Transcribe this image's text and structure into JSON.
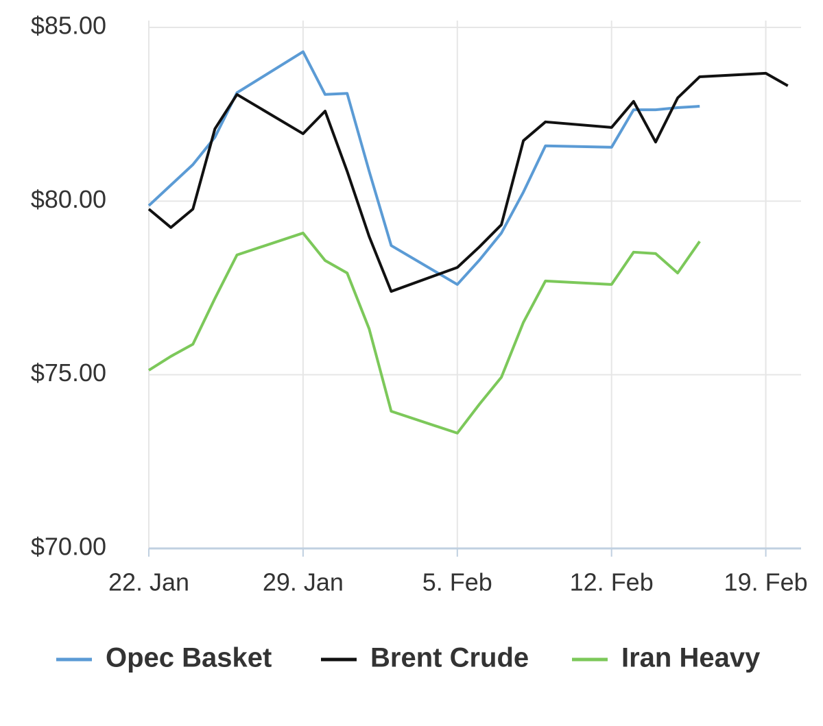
{
  "chart_data": {
    "type": "line",
    "x": [
      0,
      1,
      2,
      3,
      4,
      7,
      8,
      9,
      10,
      11,
      14,
      15,
      16,
      17,
      18,
      21,
      22,
      23,
      24,
      25,
      28,
      29
    ],
    "series": [
      {
        "name": "Opec Basket",
        "color": "#5b9bd5",
        "values": [
          79.87,
          80.46,
          81.05,
          81.84,
          83.12,
          84.3,
          83.07,
          83.1,
          80.86,
          78.72,
          77.6,
          78.3,
          79.08,
          80.26,
          81.59,
          81.55,
          82.63,
          82.63,
          82.69,
          82.73,
          null,
          null
        ]
      },
      {
        "name": "Brent Crude",
        "color": "#111111",
        "values": [
          79.77,
          79.24,
          79.77,
          82.08,
          83.07,
          81.94,
          82.59,
          80.86,
          78.98,
          77.4,
          78.09,
          78.68,
          79.32,
          81.74,
          82.28,
          82.12,
          82.87,
          81.7,
          82.97,
          83.58,
          83.68,
          83.32
        ]
      },
      {
        "name": "Iran Heavy",
        "color": "#7cc85a",
        "values": [
          75.13,
          75.53,
          75.88,
          77.2,
          78.45,
          79.08,
          78.29,
          77.93,
          76.32,
          73.95,
          73.32,
          74.15,
          74.93,
          76.51,
          77.7,
          77.6,
          78.53,
          78.49,
          77.93,
          78.84,
          null,
          null
        ]
      }
    ],
    "xlim": [
      0,
      29.6
    ],
    "xticks": [
      {
        "value": 0,
        "label": "22. Jan"
      },
      {
        "value": 7,
        "label": "29. Jan"
      },
      {
        "value": 14,
        "label": "5. Feb"
      },
      {
        "value": 21,
        "label": "12. Feb"
      },
      {
        "value": 28,
        "label": "19. Feb"
      }
    ],
    "ylim": [
      70,
      85
    ],
    "yticks": [
      {
        "value": 70,
        "label": "$70.00"
      },
      {
        "value": 75,
        "label": "$75.00"
      },
      {
        "value": 80,
        "label": "$80.00"
      },
      {
        "value": 85,
        "label": "$85.00"
      }
    ],
    "grid": true
  }
}
